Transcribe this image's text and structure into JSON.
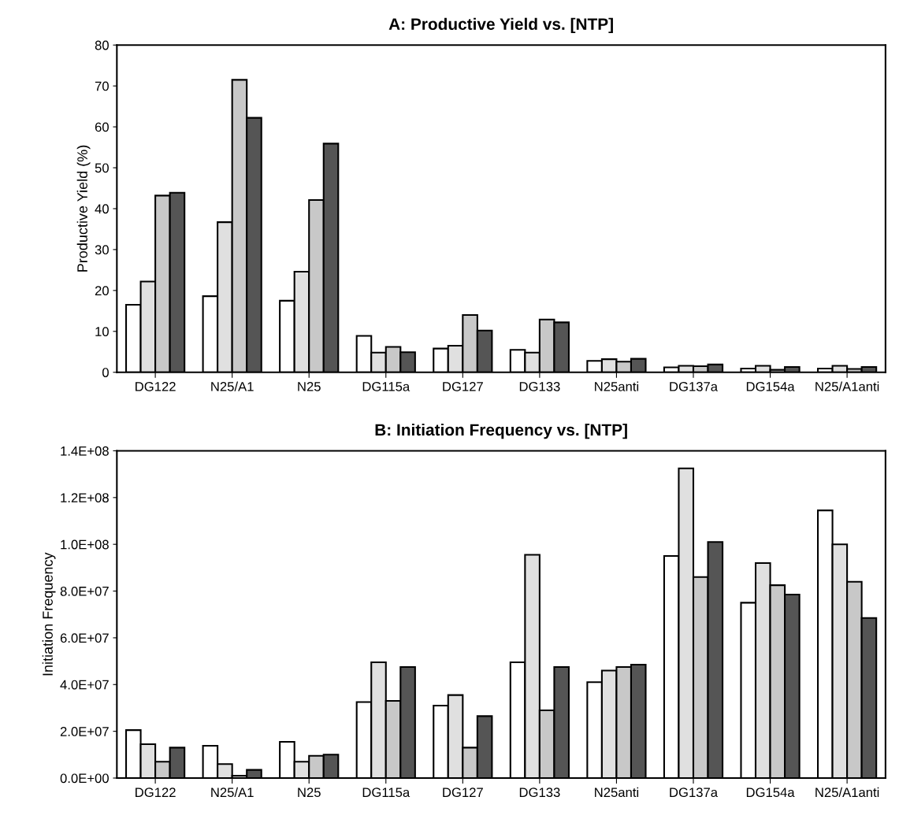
{
  "chart_data": [
    {
      "type": "bar",
      "title": "A: Productive Yield vs. [NTP]",
      "ylabel": "Productive Yield (%)",
      "categories": [
        "DG122",
        "N25/A1",
        "N25",
        "DG115a",
        "DG127",
        "DG133",
        "N25anti",
        "DG137a",
        "DG154a",
        "N25/A1anti"
      ],
      "series": [
        {
          "color": "#ffffff",
          "values": [
            16.5,
            18.6,
            17.5,
            8.9,
            5.8,
            5.5,
            2.8,
            1.2,
            0.9,
            0.9
          ]
        },
        {
          "color": "#e0e0e0",
          "values": [
            22.2,
            36.7,
            24.6,
            4.8,
            6.5,
            4.8,
            3.2,
            1.6,
            1.6,
            1.6
          ]
        },
        {
          "color": "#c8c8c8",
          "values": [
            43.2,
            71.5,
            42.1,
            6.2,
            14.0,
            12.9,
            2.6,
            1.5,
            0.6,
            0.8
          ]
        },
        {
          "color": "#555555",
          "values": [
            43.9,
            62.2,
            55.9,
            4.9,
            10.2,
            12.2,
            3.3,
            1.9,
            1.3,
            1.3
          ]
        }
      ],
      "ylim": [
        0,
        80
      ],
      "yticks": [
        0,
        10,
        20,
        30,
        40,
        50,
        60,
        70,
        80
      ],
      "grid": false
    },
    {
      "type": "bar",
      "title": "B: Initiation Frequency vs. [NTP]",
      "ylabel": "Initiation Frequency",
      "categories": [
        "DG122",
        "N25/A1",
        "N25",
        "DG115a",
        "DG127",
        "DG133",
        "N25anti",
        "DG137a",
        "DG154a",
        "N25/A1anti"
      ],
      "series": [
        {
          "color": "#ffffff",
          "values": [
            20500000,
            13800000,
            15500000,
            32500000,
            31000000,
            49500000,
            41000000,
            95000000,
            75000000,
            114500000
          ]
        },
        {
          "color": "#e0e0e0",
          "values": [
            14500000,
            6000000,
            7000000,
            49500000,
            35500000,
            95500000,
            46000000,
            132500000,
            92000000,
            100000000
          ]
        },
        {
          "color": "#c8c8c8",
          "values": [
            7000000,
            1000000,
            9500000,
            33000000,
            13000000,
            29000000,
            47500000,
            86000000,
            82500000,
            84000000
          ]
        },
        {
          "color": "#555555",
          "values": [
            13000000,
            3500000,
            10000000,
            47500000,
            26500000,
            47500000,
            48500000,
            101000000,
            78500000,
            68500000
          ]
        }
      ],
      "ylim": [
        0,
        140000000
      ],
      "yticks": [
        {
          "value": 0,
          "label": "0.0E+00"
        },
        {
          "value": 20000000,
          "label": "2.0E+07"
        },
        {
          "value": 40000000,
          "label": "4.0E+07"
        },
        {
          "value": 60000000,
          "label": "6.0E+07"
        },
        {
          "value": 80000000,
          "label": "8.0E+07"
        },
        {
          "value": 100000000,
          "label": "1.0E+08"
        },
        {
          "value": 120000000,
          "label": "1.2E+08"
        },
        {
          "value": 140000000,
          "label": "1.4E+08"
        }
      ],
      "grid": false
    }
  ]
}
